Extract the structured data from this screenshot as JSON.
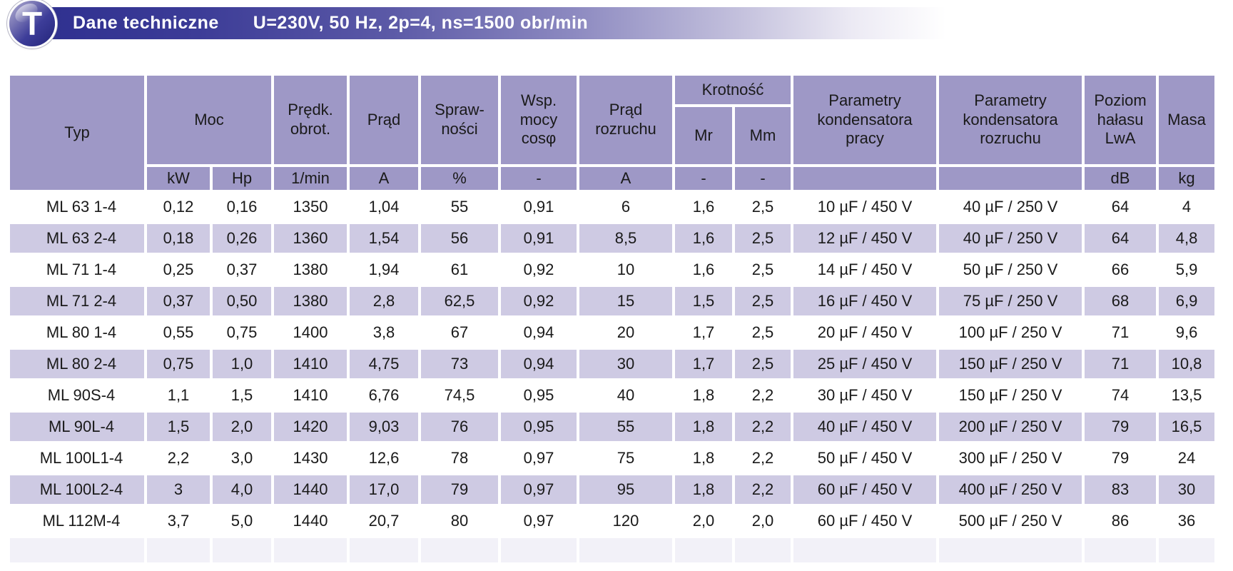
{
  "banner": {
    "logo_letter": "T",
    "title": "Dane techniczne",
    "subtitle": "U=230V, 50 Hz, 2p=4, ns=1500 obr/min"
  },
  "colors": {
    "banner_dark": "#2e2f8f",
    "header_purple": "#9e98c6",
    "stripe_purple": "#cecae3",
    "text": "#1a1a1a"
  },
  "table": {
    "header": {
      "typ": "Typ",
      "moc": "Moc",
      "predk_obrot": "Prędk.\nobrot.",
      "prad": "Prąd",
      "sprawnosci": "Spraw-\nności",
      "wsp_mocy": "Wsp.\nmocy\ncosφ",
      "prad_rozruchu": "Prąd\nrozruchu",
      "krotnosc": "Krotność",
      "mr": "Mr",
      "mm": "Mm",
      "kondensator_pracy": "Parametry\nkondensatora\npracy",
      "kondensator_rozruchu": "Parametry\nkondensatora\nrozruchu",
      "poziom_halasu": "Poziom\nhałasu\nLwA",
      "masa": "Masa"
    },
    "units": [
      "kW",
      "Hp",
      "1/min",
      "A",
      "%",
      "-",
      "A",
      "-",
      "-",
      "",
      "",
      "dB",
      "kg"
    ],
    "rows": [
      {
        "typ": "ML 63 1-4",
        "values": [
          "0,12",
          "0,16",
          "1350",
          "1,04",
          "55",
          "0,91",
          "6",
          "1,6",
          "2,5",
          "10 µF / 450 V",
          "40 µF / 250 V",
          "64",
          "4"
        ]
      },
      {
        "typ": "ML 63 2-4",
        "values": [
          "0,18",
          "0,26",
          "1360",
          "1,54",
          "56",
          "0,91",
          "8,5",
          "1,6",
          "2,5",
          "12 µF / 450 V",
          "40 µF / 250 V",
          "64",
          "4,8"
        ]
      },
      {
        "typ": "ML 71 1-4",
        "values": [
          "0,25",
          "0,37",
          "1380",
          "1,94",
          "61",
          "0,92",
          "10",
          "1,6",
          "2,5",
          "14 µF / 450 V",
          "50 µF / 250 V",
          "66",
          "5,9"
        ]
      },
      {
        "typ": "ML 71 2-4",
        "values": [
          "0,37",
          "0,50",
          "1380",
          "2,8",
          "62,5",
          "0,92",
          "15",
          "1,5",
          "2,5",
          "16 µF / 450 V",
          "75 µF / 250 V",
          "68",
          "6,9"
        ]
      },
      {
        "typ": "ML 80 1-4",
        "values": [
          "0,55",
          "0,75",
          "1400",
          "3,8",
          "67",
          "0,94",
          "20",
          "1,7",
          "2,5",
          "20 µF / 450 V",
          "100 µF / 250 V",
          "71",
          "9,6"
        ]
      },
      {
        "typ": "ML 80 2-4",
        "values": [
          "0,75",
          "1,0",
          "1410",
          "4,75",
          "73",
          "0,94",
          "30",
          "1,7",
          "2,5",
          "25 µF / 450 V",
          "150 µF / 250 V",
          "71",
          "10,8"
        ]
      },
      {
        "typ": "ML 90S-4",
        "values": [
          "1,1",
          "1,5",
          "1410",
          "6,76",
          "74,5",
          "0,95",
          "40",
          "1,8",
          "2,2",
          "30 µF / 450 V",
          "150 µF / 250 V",
          "74",
          "13,5"
        ]
      },
      {
        "typ": "ML 90L-4",
        "values": [
          "1,5",
          "2,0",
          "1420",
          "9,03",
          "76",
          "0,95",
          "55",
          "1,8",
          "2,2",
          "40 µF / 450 V",
          "200 µF / 250 V",
          "79",
          "16,5"
        ]
      },
      {
        "typ": "ML 100L1-4",
        "values": [
          "2,2",
          "3,0",
          "1430",
          "12,6",
          "78",
          "0,97",
          "75",
          "1,8",
          "2,2",
          "50 µF / 450 V",
          "300 µF / 250 V",
          "79",
          "24"
        ]
      },
      {
        "typ": "ML 100L2-4",
        "values": [
          "3",
          "4,0",
          "1440",
          "17,0",
          "79",
          "0,97",
          "95",
          "1,8",
          "2,2",
          "60 µF / 450 V",
          "400 µF / 250 V",
          "83",
          "30"
        ]
      },
      {
        "typ": "ML 112M-4",
        "values": [
          "3,7",
          "5,0",
          "1440",
          "20,7",
          "80",
          "0,97",
          "120",
          "2,0",
          "2,0",
          "60 µF / 450 V",
          "500 µF / 250 V",
          "86",
          "36"
        ]
      }
    ]
  }
}
